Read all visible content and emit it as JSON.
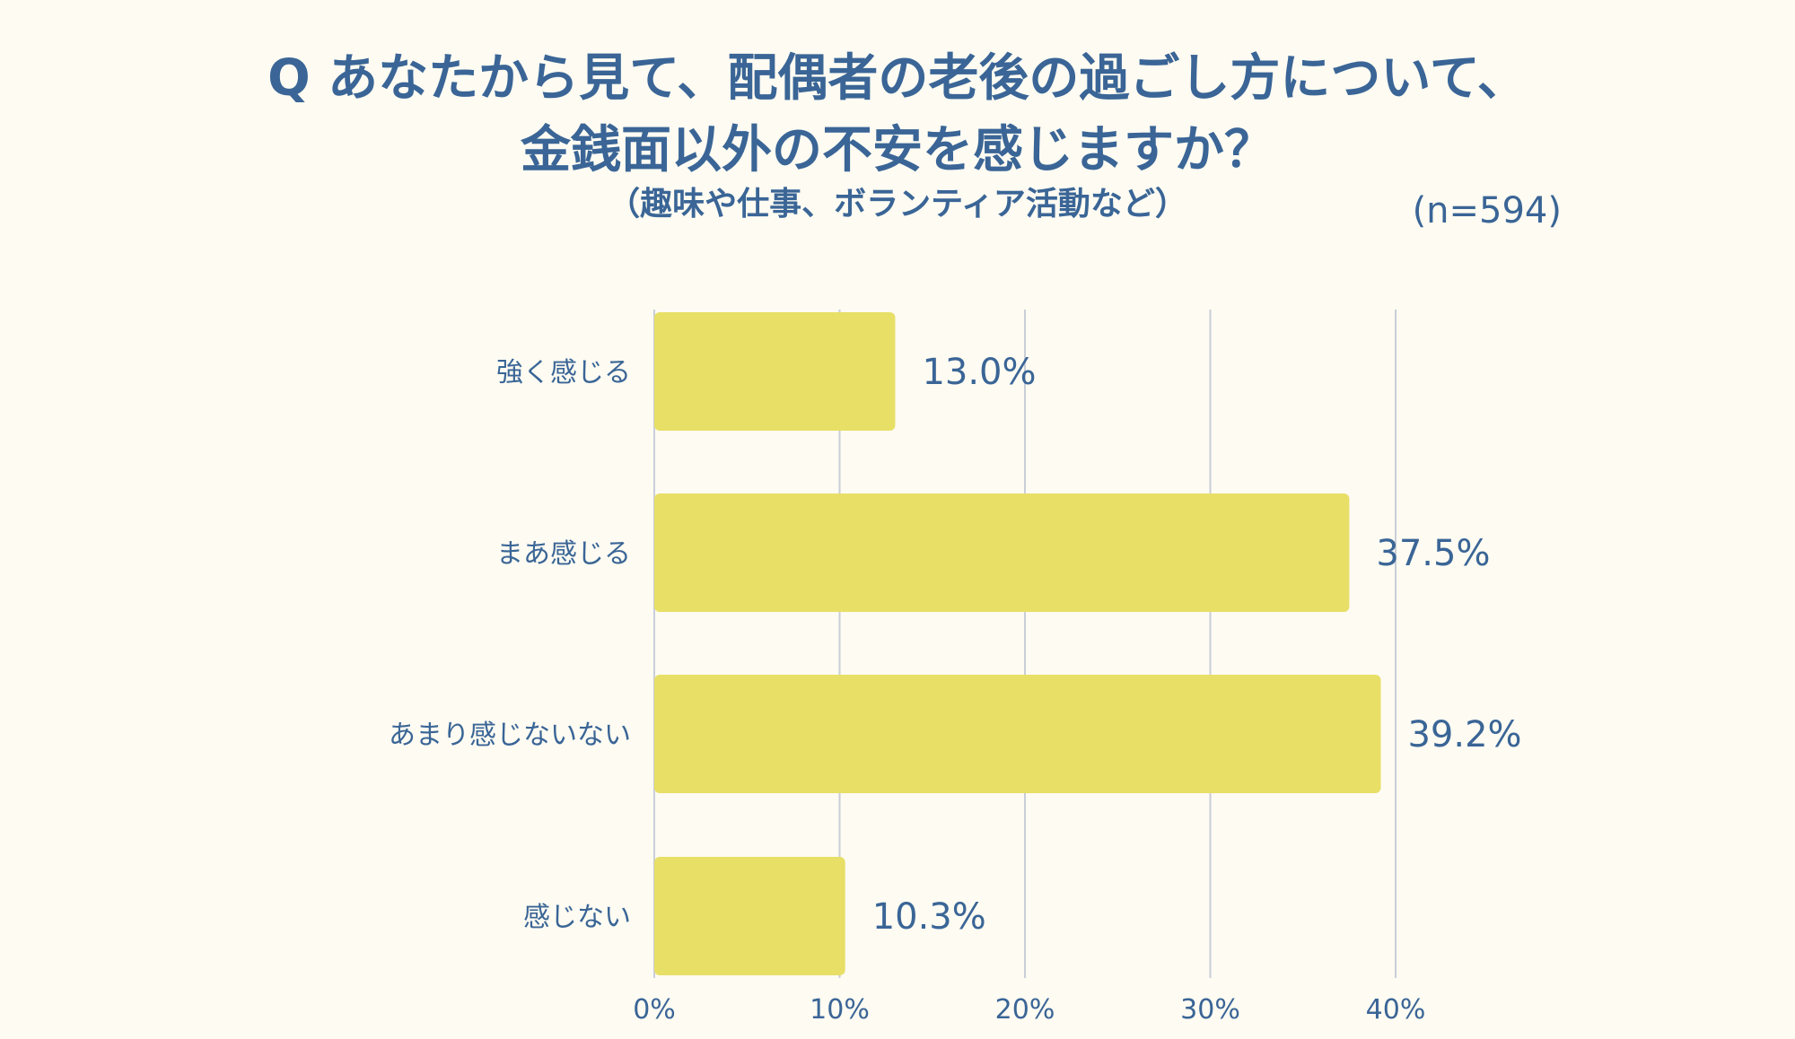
{
  "chart_data": {
    "type": "bar",
    "orientation": "horizontal",
    "title_lines": [
      "Q あなたから見て、配偶者の老後の過ごし方について、",
      "金銭面以外の不安を感じますか？"
    ],
    "subtitle": "（趣味や仕事、ボランティア活動など）",
    "sample_size": "(n=594)",
    "categories": [
      "強く感じる",
      "まあ感じる",
      "あまり感じないない",
      "感じない"
    ],
    "values": [
      13.0,
      37.5,
      39.2,
      10.3
    ],
    "value_labels": [
      "13.0%",
      "37.5%",
      "39.2%",
      "10.3%"
    ],
    "x_ticks": [
      0,
      10,
      20,
      30,
      40
    ],
    "x_tick_labels": [
      "0%",
      "10%",
      "20%",
      "30%",
      "40%"
    ],
    "xlim": [
      0,
      40
    ],
    "grid": true,
    "colors": {
      "bar": "#e8df66",
      "text": "#3a6596",
      "grid": "#c9ced8",
      "background": "#fdfbf2"
    }
  }
}
